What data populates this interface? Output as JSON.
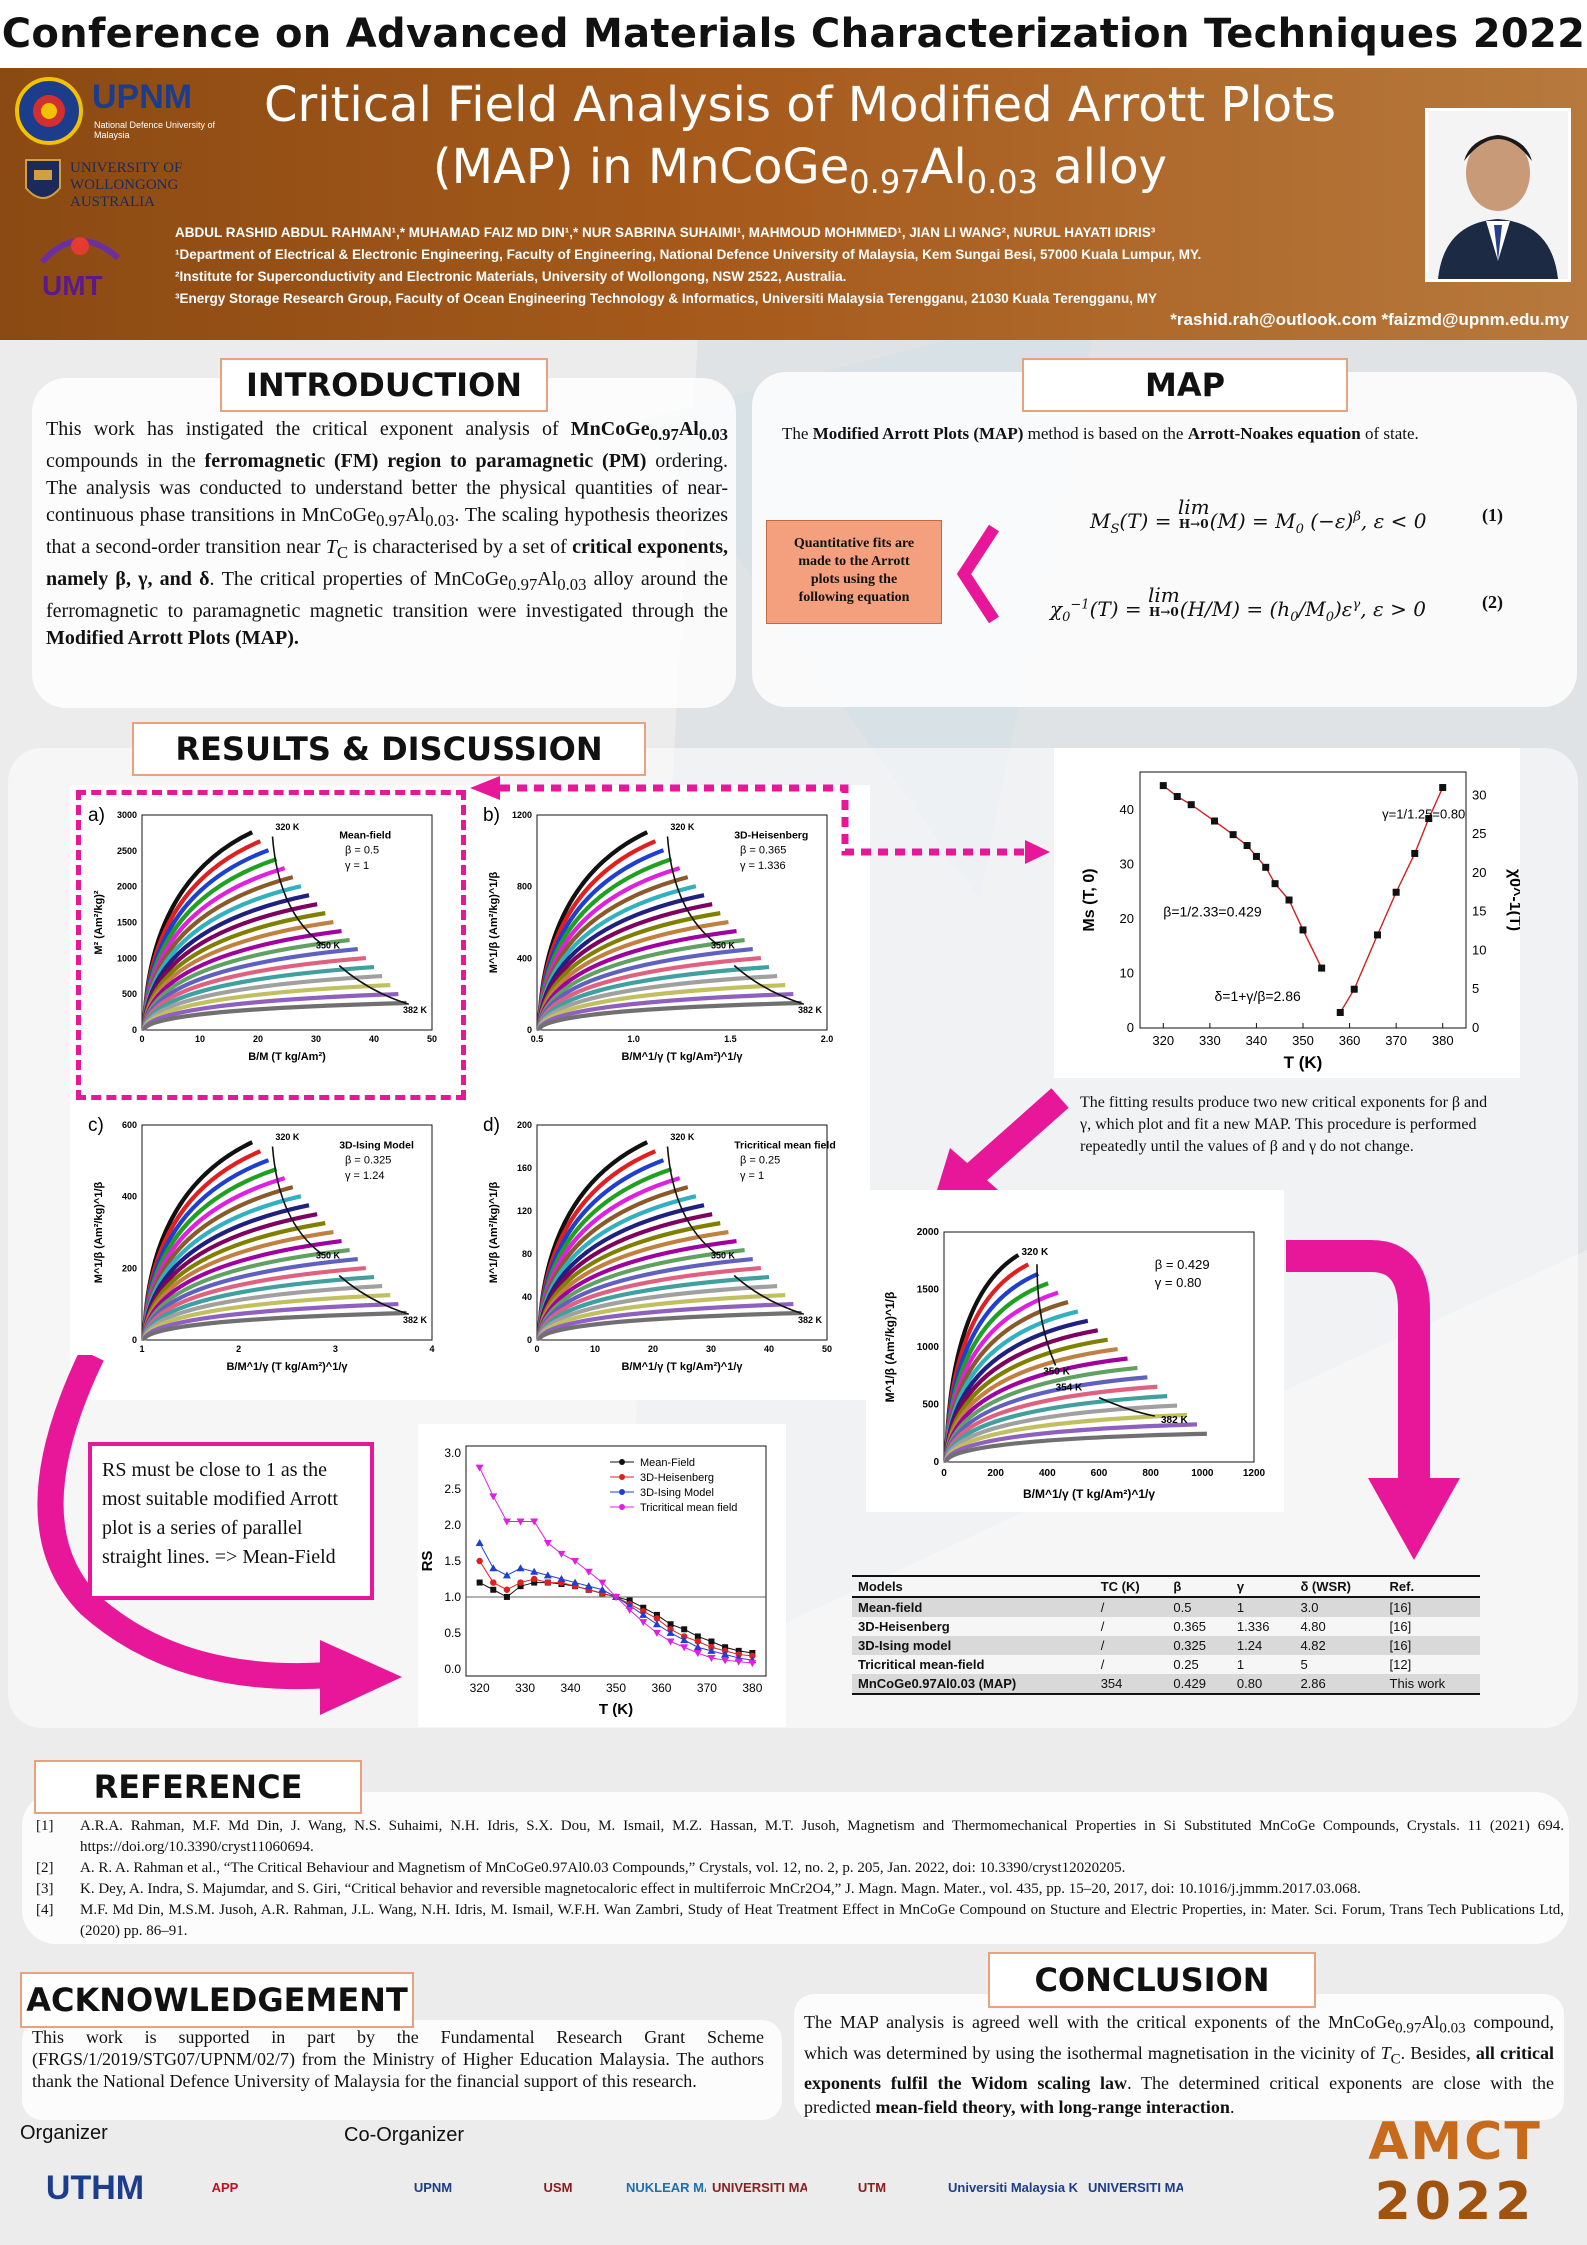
{
  "header": {
    "conference": "Conference on Advanced Materials Characterization Techniques 2022",
    "title_line1": "Critical Field Analysis of Modified Arrott Plots",
    "title_line2_prefix": "(MAP) in MnCoGe",
    "title_sub1": "0.97",
    "title_mid": "Al",
    "title_sub2": "0.03",
    "title_suffix": " alloy",
    "authors": "ABDUL RASHID ABDUL RAHMAN¹,* MUHAMAD FAIZ MD DIN¹,* NUR SABRINA SUHAIMI¹, MAHMOUD MOHMMED¹, JIAN LI WANG², NURUL HAYATI IDRIS³",
    "affiliations": [
      "¹Department of Electrical & Electronic Engineering, Faculty of Engineering, National Defence University of Malaysia, Kem Sungai Besi, 57000 Kuala Lumpur, MY.",
      "²Institute for Superconductivity and Electronic Materials, University of Wollongong, NSW 2522, Australia.",
      "³Energy Storage Research Group, Faculty of Ocean Engineering Technology & Informatics, Universiti Malaysia Terengganu, 21030 Kuala Terengganu, MY"
    ],
    "emails": "*rashid.rah@outlook.com  *faizmd@upnm.edu.my",
    "logos": {
      "upnm": "UPNM",
      "upnm_sub": "National Defence University of Malaysia",
      "uow": "UNIVERSITY OF WOLLONGONG AUSTRALIA",
      "umt": "UMT"
    }
  },
  "introduction": {
    "heading": "INTRODUCTION"
  },
  "map": {
    "heading": "MAP",
    "lead_pre": "The ",
    "lead_b1": "Modified Arrott Plots (MAP)",
    "lead_mid": " method is based on the ",
    "lead_b2": "Arrott-Noakes equation",
    "lead_post": " of state.",
    "box": "Quantitative fits are made to the Arrott plots using the following equation",
    "eq1_num": "(1)",
    "eq2_num": "(2)"
  },
  "results": {
    "heading": "RESULTS & DISCUSSION",
    "panels": [
      {
        "label": "a)",
        "model": "Mean-field",
        "beta": "β = 0.5",
        "gamma": "γ = 1",
        "ylabel": "M² (Am²/kg)²",
        "xlabel": "B/M (T kg/Am²)",
        "yticks": [
          "0",
          "500",
          "1000",
          "1500",
          "2000",
          "2500",
          "3000"
        ],
        "xticks": [
          "0",
          "10",
          "20",
          "30",
          "40",
          "50"
        ],
        "t1": "320 K",
        "t2": "350 K",
        "t3": "382 K"
      },
      {
        "label": "b)",
        "model": "3D-Heisenberg",
        "beta": "β = 0.365",
        "gamma": "γ = 1.336",
        "ylabel": "M^1/β (Am²/kg)^1/β",
        "xlabel": "B/M^1/γ (T kg/Am²)^1/γ",
        "yticks": [
          "0",
          "400",
          "800",
          "1200"
        ],
        "xticks": [
          "0.5",
          "1.0",
          "1.5",
          "2.0"
        ],
        "t1": "320 K",
        "t2": "350 K",
        "t3": "382 K"
      },
      {
        "label": "c)",
        "model": "3D-Ising Model",
        "beta": "β = 0.325",
        "gamma": "γ = 1.24",
        "ylabel": "M^1/β (Am²/kg)^1/β",
        "xlabel": "B/M^1/γ (T kg/Am²)^1/γ",
        "yticks": [
          "0",
          "200",
          "400",
          "600"
        ],
        "xticks": [
          "1",
          "2",
          "3",
          "4"
        ],
        "t1": "320 K",
        "t2": "350 K",
        "t3": "382 K"
      },
      {
        "label": "d)",
        "model": "Tricritical mean field",
        "beta": "β = 0.25",
        "gamma": "γ = 1",
        "ylabel": "M^1/β (Am²/kg)^1/β",
        "xlabel": "B/M^1/γ (T kg/Am²)^1/γ",
        "yticks": [
          "0",
          "40",
          "80",
          "120",
          "160",
          "200"
        ],
        "xticks": [
          "0",
          "10",
          "20",
          "30",
          "40",
          "50"
        ],
        "t1": "320 K",
        "t2": "350 K",
        "t3": "382 K"
      }
    ],
    "fit_text": "The fitting results produce two new critical exponents for β and γ, which plot and fit a new MAP. This procedure is performed repeatedly until the values of β and γ do not change.",
    "rs_note": "RS must be close to 1 as the most suitable modified Arrott plot is a series of parallel straight lines. => Mean-Field",
    "new_map": {
      "beta": "β = 0.429",
      "gamma": "γ = 0.80",
      "ylabel": "M^1/β (Am²/kg)^1/β",
      "xlabel": "B/M^1/γ (T kg/Am²)^1/γ",
      "yticks": [
        "0",
        "500",
        "1000",
        "1500",
        "2000"
      ],
      "xticks": [
        "0",
        "200",
        "400",
        "600",
        "800",
        "1000",
        "1200"
      ],
      "t1": "320 K",
      "t2": "350 K",
      "t3": "354 K",
      "t4": "382 K"
    }
  },
  "chart_data": [
    {
      "type": "scatter",
      "title": "",
      "xlabel": "T (K)",
      "ylabel": "Ms (T, 0)",
      "ylabel_right": "χ0^-1(T)",
      "xlim": [
        315,
        385
      ],
      "ylim": [
        0,
        47
      ],
      "ylim_right": [
        0,
        33
      ],
      "xticks": [
        320,
        330,
        340,
        350,
        360,
        370,
        380
      ],
      "yticks": [
        0,
        10,
        20,
        30,
        40
      ],
      "yticks_right": [
        0,
        5,
        10,
        15,
        20,
        25,
        30
      ],
      "series": [
        {
          "axis": "left",
          "x": [
            320,
            323,
            326,
            331,
            335,
            338,
            340,
            342,
            344,
            347,
            350,
            354
          ],
          "y": [
            44.5,
            42.5,
            41,
            38,
            35.5,
            33.5,
            31.5,
            29.5,
            26.5,
            23.5,
            18,
            11
          ]
        },
        {
          "axis": "right",
          "x": [
            358,
            361,
            366,
            370,
            374,
            377,
            380
          ],
          "y": [
            2,
            5,
            12,
            17.5,
            22.5,
            27,
            31
          ]
        }
      ],
      "annotations": [
        "γ=1/1.25=0.80",
        "β=1/2.33=0.429",
        "δ=1+γ/β=2.86"
      ]
    },
    {
      "type": "line",
      "title": "",
      "xlabel": "T (K)",
      "ylabel": "RS",
      "xlim": [
        317,
        383
      ],
      "ylim": [
        -0.1,
        3.1
      ],
      "xticks": [
        320,
        330,
        340,
        350,
        360,
        370,
        380
      ],
      "yticks": [
        0.0,
        0.5,
        1.0,
        1.5,
        2.0,
        2.5,
        3.0
      ],
      "legend": "top-right",
      "x": [
        320,
        323,
        326,
        329,
        332,
        335,
        338,
        341,
        344,
        347,
        350,
        353,
        356,
        359,
        362,
        365,
        368,
        371,
        374,
        377,
        380
      ],
      "series": [
        {
          "name": "Mean-Field",
          "color": "#111111",
          "marker": "square",
          "values": [
            1.2,
            1.1,
            1.0,
            1.15,
            1.2,
            1.2,
            1.18,
            1.15,
            1.1,
            1.05,
            1.0,
            0.95,
            0.85,
            0.75,
            0.62,
            0.55,
            0.45,
            0.38,
            0.3,
            0.25,
            0.22
          ]
        },
        {
          "name": "3D-Heisenberg",
          "color": "#e02020",
          "marker": "circle",
          "values": [
            1.5,
            1.2,
            1.1,
            1.2,
            1.25,
            1.2,
            1.2,
            1.15,
            1.1,
            1.05,
            1.0,
            0.9,
            0.8,
            0.7,
            0.55,
            0.45,
            0.38,
            0.3,
            0.25,
            0.2,
            0.18
          ]
        },
        {
          "name": "3D-Ising Model",
          "color": "#1f3fd0",
          "marker": "triangle",
          "values": [
            1.75,
            1.4,
            1.3,
            1.4,
            1.35,
            1.3,
            1.25,
            1.2,
            1.15,
            1.1,
            1.0,
            0.88,
            0.75,
            0.62,
            0.5,
            0.4,
            0.3,
            0.25,
            0.2,
            0.15,
            0.12
          ]
        },
        {
          "name": "Tricritical mean field",
          "color": "#e020e0",
          "marker": "triangle-down",
          "values": [
            2.8,
            2.4,
            2.05,
            2.05,
            2.05,
            1.75,
            1.6,
            1.5,
            1.35,
            1.2,
            1.0,
            0.82,
            0.65,
            0.5,
            0.38,
            0.3,
            0.22,
            0.15,
            0.12,
            0.1,
            0.08
          ]
        }
      ]
    },
    {
      "type": "table",
      "columns": [
        "Models",
        "TC (K)",
        "β",
        "γ",
        "δ  (WSR)",
        "Ref."
      ],
      "rows": [
        [
          "Mean-field",
          "/",
          "0.5",
          "1",
          "3.0",
          "[16]"
        ],
        [
          "3D-Heisenberg",
          "/",
          "0.365",
          "1.336",
          "4.80",
          "[16]"
        ],
        [
          "3D-Ising model",
          "/",
          "0.325",
          "1.24",
          "4.82",
          "[16]"
        ],
        [
          "Tricritical mean-field",
          "/",
          "0.25",
          "1",
          "5",
          "[12]"
        ],
        [
          "MnCoGe0.97Al0.03 (MAP)",
          "354",
          "0.429",
          "0.80",
          "2.86",
          "This work"
        ]
      ]
    }
  ],
  "reference": {
    "heading": "REFERENCE",
    "items": [
      {
        "n": "[1]",
        "t": "A.R.A. Rahman, M.F. Md Din, J. Wang, N.S. Suhaimi, N.H. Idris, S.X. Dou, M. Ismail, M.Z. Hassan, M.T. Jusoh, Magnetism and Thermomechanical Properties in Si Substituted MnCoGe Compounds, Crystals. 11 (2021) 694. https://doi.org/10.3390/cryst11060694."
      },
      {
        "n": "[2]",
        "t": "A. R. A. Rahman et al., “The Critical Behaviour and Magnetism of MnCoGe0.97Al0.03 Compounds,” Crystals, vol. 12, no. 2, p. 205, Jan. 2022, doi: 10.3390/cryst12020205."
      },
      {
        "n": "[3]",
        "t": "K. Dey, A. Indra, S. Majumdar, and S. Giri, “Critical behavior and reversible magnetocaloric effect in multiferroic MnCr2O4,” J. Magn. Magn. Mater., vol. 435, pp. 15–20, 2017, doi: 10.1016/j.jmmm.2017.03.068."
      },
      {
        "n": "[4]",
        "t": "M.F. Md Din, M.S.M. Jusoh, A.R. Rahman, J.L. Wang, N.H. Idris, M. Ismail, W.F.H. Wan Zambri, Study of Heat Treatment Effect in MnCoGe Compound on Stucture and Electric Properties, in: Mater. Sci. Forum, Trans Tech Publications Ltd, (2020) pp. 86–91."
      }
    ]
  },
  "acknowledgement": {
    "heading": "ACKNOWLEDGEMENT",
    "text": "This work is supported in part by the Fundamental Research Grant Scheme (FRGS/1/2019/STG07/UPNM/02/7) from the Ministry of Higher Education Malaysia. The authors thank the National Defence University of Malaysia for the financial support of this research."
  },
  "conclusion": {
    "heading": "CONCLUSION"
  },
  "footer": {
    "organizer": "Organizer",
    "co_organizer": "Co-Organizer",
    "logos": [
      "UTHM",
      "APP",
      "UPNM",
      "USM",
      "NUKLEAR MALAYSIA",
      "UNIVERSITI MALAYA",
      "UTM",
      "Universiti Malaysia KELANTAN",
      "UNIVERSITI MALAYSIA PERLIS"
    ],
    "amct": "AMCT",
    "year": "2022"
  },
  "colors": {
    "banner": "#9a5418",
    "accent": "#e8179a",
    "heading_border": "#e8a27c",
    "box": "#f4a07f"
  }
}
